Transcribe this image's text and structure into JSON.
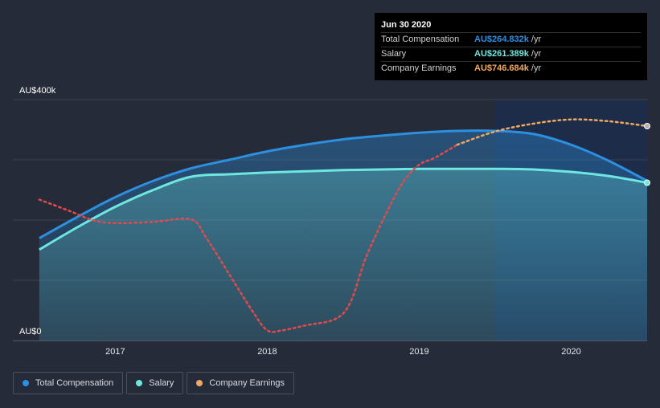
{
  "tooltip": {
    "date": "Jun 30 2020",
    "rows": [
      {
        "label": "Total Compensation",
        "value": "AU$264.832k",
        "unit": "/yr",
        "color": "#2d8fe0"
      },
      {
        "label": "Salary",
        "value": "AU$261.389k",
        "unit": "/yr",
        "color": "#6ee7e0"
      },
      {
        "label": "Company Earnings",
        "value": "AU$746.684k",
        "unit": "/yr",
        "color": "#f0a960"
      }
    ]
  },
  "legend": [
    {
      "label": "Total Compensation",
      "color": "#2d8fe0"
    },
    {
      "label": "Salary",
      "color": "#6ee7e0"
    },
    {
      "label": "Company Earnings",
      "color": "#f0a960"
    }
  ],
  "chart_data": {
    "type": "area",
    "y_tick_labels": [
      "AU$0",
      "AU$400k"
    ],
    "ylim": [
      0,
      400
    ],
    "x_tick_labels": [
      "2017",
      "2018",
      "2019",
      "2020"
    ],
    "x_ticks": [
      2017.0,
      2018.0,
      2019.0,
      2020.0
    ],
    "xlim": [
      2016.49,
      2020.5
    ],
    "highlight_from": 2019.5,
    "series": [
      {
        "name": "Total Compensation",
        "color": "#2d8fe0",
        "unit": "AU$k",
        "x": [
          2016.5,
          2016.75,
          2017.0,
          2017.25,
          2017.5,
          2017.75,
          2018.0,
          2018.25,
          2018.5,
          2018.75,
          2019.0,
          2019.25,
          2019.5,
          2019.75,
          2020.0,
          2020.25,
          2020.5
        ],
        "values": [
          170,
          205,
          238,
          265,
          286,
          300,
          314,
          325,
          334,
          340,
          345,
          348,
          348,
          343,
          325,
          298,
          265
        ]
      },
      {
        "name": "Salary",
        "color": "#6ee7e0",
        "unit": "AU$k",
        "x": [
          2016.5,
          2016.75,
          2017.0,
          2017.25,
          2017.5,
          2017.75,
          2018.0,
          2018.25,
          2018.5,
          2018.75,
          2019.0,
          2019.25,
          2019.5,
          2019.75,
          2020.0,
          2020.25,
          2020.5
        ],
        "values": [
          151,
          188,
          222,
          250,
          272,
          276,
          279,
          281,
          283,
          284,
          285,
          285,
          285,
          284,
          280,
          273,
          262
        ]
      },
      {
        "name": "Company Earnings",
        "color": "#f0a960",
        "negative_color": "#e04b4b",
        "unit": "scaled",
        "x": [
          2016.5,
          2016.7,
          2016.85,
          2017.0,
          2017.25,
          2017.5,
          2017.6,
          2017.75,
          2017.9,
          2018.0,
          2018.1,
          2018.25,
          2018.45,
          2018.55,
          2018.65,
          2018.8,
          2018.9,
          2019.0,
          2019.1,
          2019.25,
          2019.5,
          2019.75,
          2020.0,
          2020.25,
          2020.5
        ],
        "values": [
          234,
          215,
          200,
          195,
          197,
          201,
          170,
          110,
          50,
          17,
          17,
          25,
          36,
          65,
          138,
          220,
          265,
          292,
          303,
          325,
          347,
          360,
          367,
          364,
          356
        ],
        "negative_until": 2019.2
      }
    ]
  }
}
